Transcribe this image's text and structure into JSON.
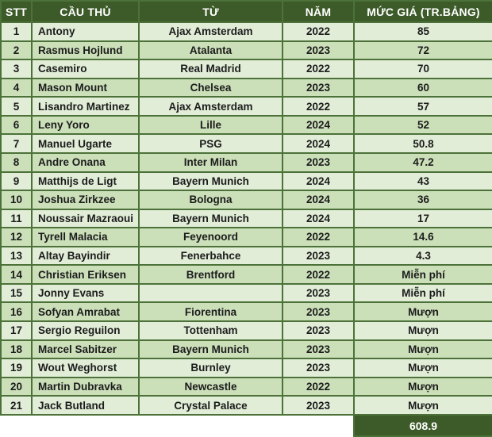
{
  "colors": {
    "header_bg": "#3d5b29",
    "total_bg": "#3d5b29",
    "row_odd": "#e1edd7",
    "row_even": "#cbdfb9",
    "border": "#4c7239",
    "header_text": "#ffffff",
    "body_text": "#1c1c1c",
    "page_bg": "#ffffff"
  },
  "chart_data": {
    "type": "table",
    "title": "",
    "columns": [
      "STT",
      "CẦU THỦ",
      "TỪ",
      "NĂM",
      "MỨC GIÁ (TR.BẢNG)"
    ],
    "rows": [
      [
        "1",
        "Antony",
        "Ajax Amsterdam",
        "2022",
        "85"
      ],
      [
        "2",
        "Rasmus Hojlund",
        "Atalanta",
        "2023",
        "72"
      ],
      [
        "3",
        "Casemiro",
        "Real Madrid",
        "2022",
        "70"
      ],
      [
        "4",
        "Mason Mount",
        "Chelsea",
        "2023",
        "60"
      ],
      [
        "5",
        "Lisandro Martinez",
        "Ajax Amsterdam",
        "2022",
        "57"
      ],
      [
        "6",
        "Leny Yoro",
        "Lille",
        "2024",
        "52"
      ],
      [
        "7",
        "Manuel Ugarte",
        "PSG",
        "2024",
        "50.8"
      ],
      [
        "8",
        "Andre Onana",
        "Inter Milan",
        "2023",
        "47.2"
      ],
      [
        "9",
        "Matthijs de Ligt",
        "Bayern Munich",
        "2024",
        "43"
      ],
      [
        "10",
        "Joshua Zirkzee",
        "Bologna",
        "2024",
        "36"
      ],
      [
        "11",
        "Noussair Mazraoui",
        "Bayern Munich",
        "2024",
        "17"
      ],
      [
        "12",
        "Tyrell Malacia",
        "Feyenoord",
        "2022",
        "14.6"
      ],
      [
        "13",
        "Altay Bayindir",
        "Fenerbahce",
        "2023",
        "4.3"
      ],
      [
        "14",
        "Christian Eriksen",
        "Brentford",
        "2022",
        "Miễn phí"
      ],
      [
        "15",
        "Jonny Evans",
        "",
        "2023",
        "Miễn phí"
      ],
      [
        "16",
        "Sofyan Amrabat",
        "Fiorentina",
        "2023",
        "Mượn"
      ],
      [
        "17",
        "Sergio Reguilon",
        "Tottenham",
        "2023",
        "Mượn"
      ],
      [
        "18",
        "Marcel Sabitzer",
        "Bayern Munich",
        "2023",
        "Mượn"
      ],
      [
        "19",
        "Wout Weghorst",
        "Burnley",
        "2023",
        "Mượn"
      ],
      [
        "20",
        "Martin Dubravka",
        "Newcastle",
        "2022",
        "Mượn"
      ],
      [
        "21",
        "Jack Butland",
        "Crystal Palace",
        "2023",
        "Mượn"
      ]
    ],
    "total": "608.9"
  }
}
